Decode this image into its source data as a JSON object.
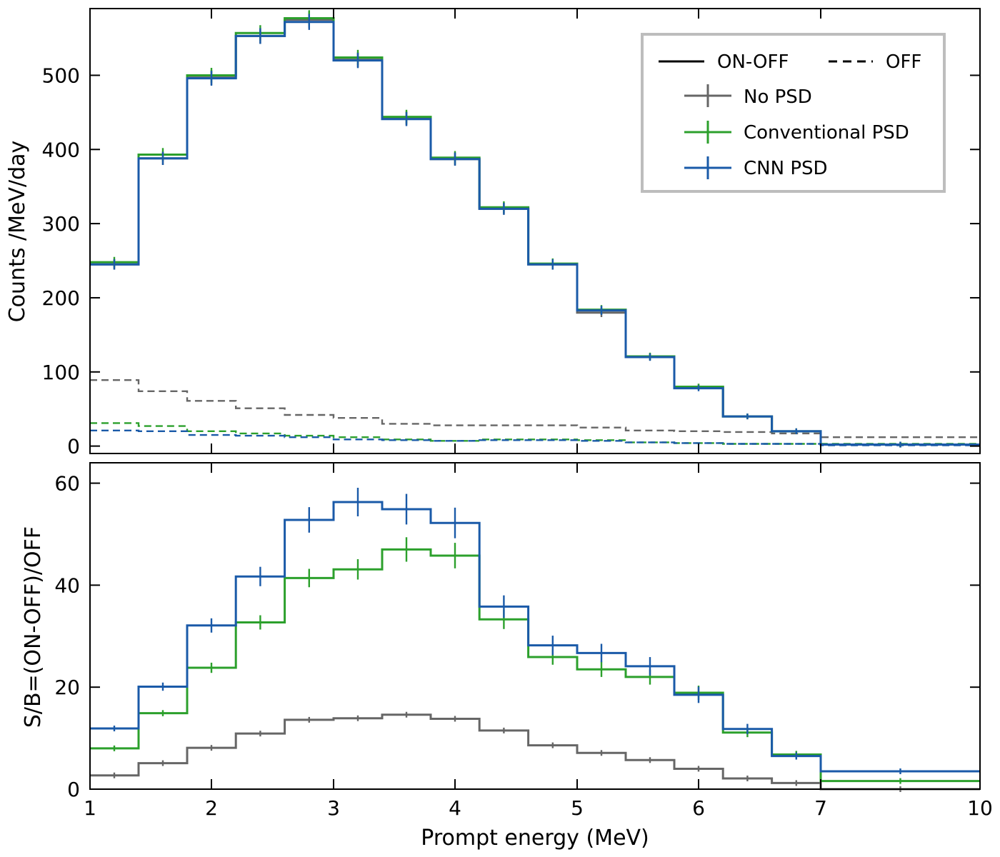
{
  "chart_data": {
    "type": "step",
    "bin_edges": [
      1.0,
      1.4,
      1.8,
      2.2,
      2.6,
      3.0,
      3.4,
      3.8,
      4.2,
      4.6,
      5.0,
      5.4,
      5.8,
      6.2,
      6.6,
      7.0,
      10.0
    ],
    "xlabel": "Prompt energy (MeV)",
    "x_ticks": [
      1,
      2,
      3,
      4,
      5,
      6,
      7,
      10
    ],
    "x_tick_labels": [
      "1",
      "2",
      "3",
      "4",
      "5",
      "6",
      "7",
      "10"
    ],
    "colors": {
      "No PSD": "#666666",
      "Conventional PSD": "#2ca02c",
      "CNN PSD": "#1a5aa8"
    },
    "legend": {
      "line_styles": [
        {
          "label": "ON-OFF",
          "style": "solid"
        },
        {
          "label": "OFF",
          "style": "dashed"
        }
      ],
      "series": [
        "No PSD",
        "Conventional PSD",
        "CNN PSD"
      ]
    },
    "panels": [
      {
        "name": "top",
        "ylabel": "Counts /MeV/day",
        "ylim": [
          -10,
          590
        ],
        "y_ticks": [
          0,
          100,
          200,
          300,
          400,
          500
        ],
        "y_tick_labels": [
          "0",
          "100",
          "200",
          "300",
          "400",
          "500"
        ],
        "series": [
          {
            "name": "No PSD",
            "style": "solid",
            "errors": true,
            "values": [
              245,
              388,
              497,
              553,
              575,
              521,
              442,
              387,
              320,
              245,
              180,
              120,
              80,
              40,
              20,
              2
            ]
          },
          {
            "name": "Conventional PSD",
            "style": "solid",
            "errors": true,
            "values": [
              248,
              393,
              500,
              557,
              577,
              524,
              444,
              389,
              322,
              246,
              184,
              121,
              80,
              40,
              20,
              2
            ]
          },
          {
            "name": "CNN PSD",
            "style": "solid",
            "errors": true,
            "values": [
              245,
              388,
              496,
              553,
              572,
              520,
              441,
              387,
              320,
              245,
              183,
              120,
              78,
              40,
              20,
              2
            ]
          },
          {
            "name": "No PSD",
            "style": "dashed",
            "errors": false,
            "values": [
              89,
              74,
              61,
              51,
              42,
              38,
              30,
              28,
              28,
              28,
              25,
              21,
              20,
              19,
              17,
              12
            ]
          },
          {
            "name": "Conventional PSD",
            "style": "dashed",
            "errors": false,
            "values": [
              31,
              27,
              20,
              17,
              14,
              12,
              9,
              7,
              9,
              9,
              8,
              5,
              4,
              3,
              3,
              3
            ]
          },
          {
            "name": "CNN PSD",
            "style": "dashed",
            "errors": false,
            "values": [
              21,
              20,
              15,
              14,
              12,
              9,
              8,
              7,
              8,
              8,
              7,
              5,
              4,
              3,
              3,
              1
            ]
          }
        ]
      },
      {
        "name": "bottom",
        "ylabel": "S/B=(ON-OFF)/OFF",
        "ylim": [
          0,
          64
        ],
        "y_ticks": [
          0,
          20,
          40,
          60
        ],
        "y_tick_labels": [
          "0",
          "20",
          "40",
          "60"
        ],
        "series": [
          {
            "name": "No PSD",
            "style": "solid",
            "errors": true,
            "values": [
              2.7,
              5.1,
              8.1,
              10.9,
              13.6,
              13.9,
              14.6,
              13.8,
              11.5,
              8.6,
              7.1,
              5.7,
              4.0,
              2.1,
              1.2,
              0
            ],
            "errors_values": [
              0.2,
              0.2,
              0.3,
              0.3,
              0.4,
              0.4,
              0.5,
              0.5,
              0.4,
              0.3,
              0.3,
              0.3,
              0.2,
              0.1,
              0.1,
              0
            ]
          },
          {
            "name": "Conventional PSD",
            "style": "solid",
            "errors": true,
            "values": [
              8.0,
              14.9,
              23.8,
              32.7,
              41.4,
              43.1,
              47.0,
              45.8,
              33.3,
              25.9,
              23.5,
              22.0,
              18.9,
              11.1,
              6.8,
              1.6
            ],
            "errors_values": [
              0.3,
              0.6,
              1.0,
              1.4,
              1.8,
              2.0,
              2.4,
              2.5,
              1.9,
              1.5,
              1.5,
              1.5,
              1.4,
              0.9,
              0.7,
              0.2
            ]
          },
          {
            "name": "CNN PSD",
            "style": "solid",
            "errors": true,
            "values": [
              11.9,
              20.1,
              32.1,
              41.7,
              52.8,
              56.3,
              54.9,
              52.2,
              35.8,
              28.2,
              26.7,
              24.1,
              18.5,
              11.8,
              6.5,
              3.5
            ],
            "errors_values": [
              0.5,
              0.8,
              1.4,
              1.9,
              2.5,
              2.8,
              3.0,
              3.0,
              2.2,
              1.9,
              1.8,
              1.8,
              1.6,
              1.0,
              0.7,
              0.3
            ]
          }
        ]
      }
    ]
  }
}
